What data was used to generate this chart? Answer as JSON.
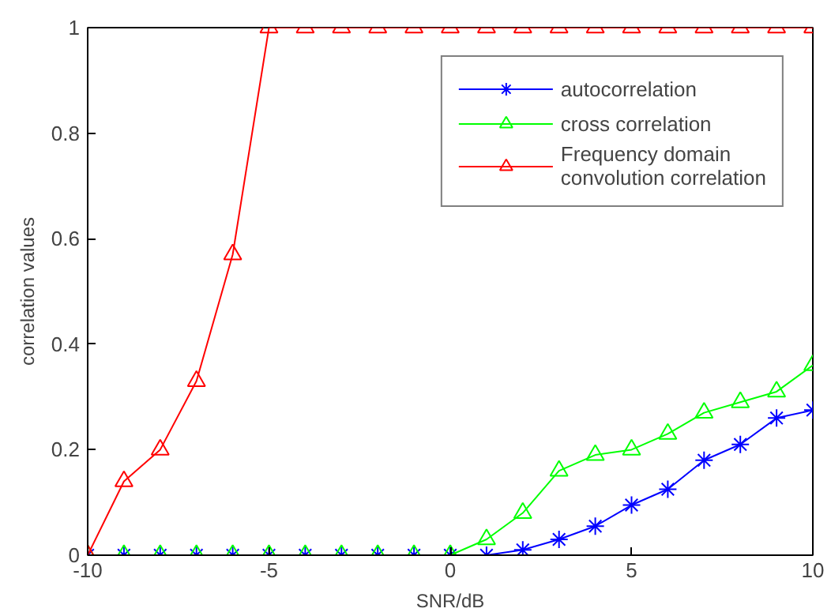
{
  "chart_data": {
    "type": "line",
    "xlabel": "SNR/dB",
    "ylabel": "correlation values",
    "x": [
      -10,
      -9,
      -8,
      -7,
      -6,
      -5,
      -4,
      -3,
      -2,
      -1,
      0,
      1,
      2,
      3,
      4,
      5,
      6,
      7,
      8,
      9,
      10
    ],
    "series": [
      {
        "name": "autocorrelation",
        "color": "#0000ff",
        "marker": "cross",
        "values": [
          0,
          0,
          0,
          0,
          0,
          0,
          0,
          0,
          0,
          0,
          0,
          0,
          0.01,
          0.03,
          0.055,
          0.095,
          0.125,
          0.18,
          0.21,
          0.26,
          0.275
        ]
      },
      {
        "name": "cross correlation",
        "color": "#00ff00",
        "marker": "triangle",
        "values": [
          0,
          0,
          0,
          0,
          0,
          0,
          0,
          0,
          0,
          0,
          0,
          0.03,
          0.08,
          0.16,
          0.19,
          0.2,
          0.23,
          0.27,
          0.29,
          0.31,
          0.36
        ]
      },
      {
        "name": "Frequency domain\nconvolution correlation",
        "color": "#ff0000",
        "marker": "triangle",
        "values": [
          0,
          0.14,
          0.2,
          0.33,
          0.57,
          1,
          1,
          1,
          1,
          1,
          1,
          1,
          1,
          1,
          1,
          1,
          1,
          1,
          1,
          1,
          1
        ]
      }
    ],
    "xlim": [
      -10,
      10
    ],
    "ylim": [
      0,
      1
    ],
    "xticks": [
      -10,
      -5,
      0,
      5,
      10
    ],
    "yticks": [
      0,
      {
        "value": 0.2,
        "label": "0.2"
      },
      {
        "value": 0.4,
        "label": "0.4"
      },
      {
        "value": 0.6,
        "label": "0.6"
      },
      {
        "value": 0.8,
        "label": "0.8"
      },
      1
    ],
    "grid": false,
    "legend": "top right",
    "line_style": "solid"
  }
}
